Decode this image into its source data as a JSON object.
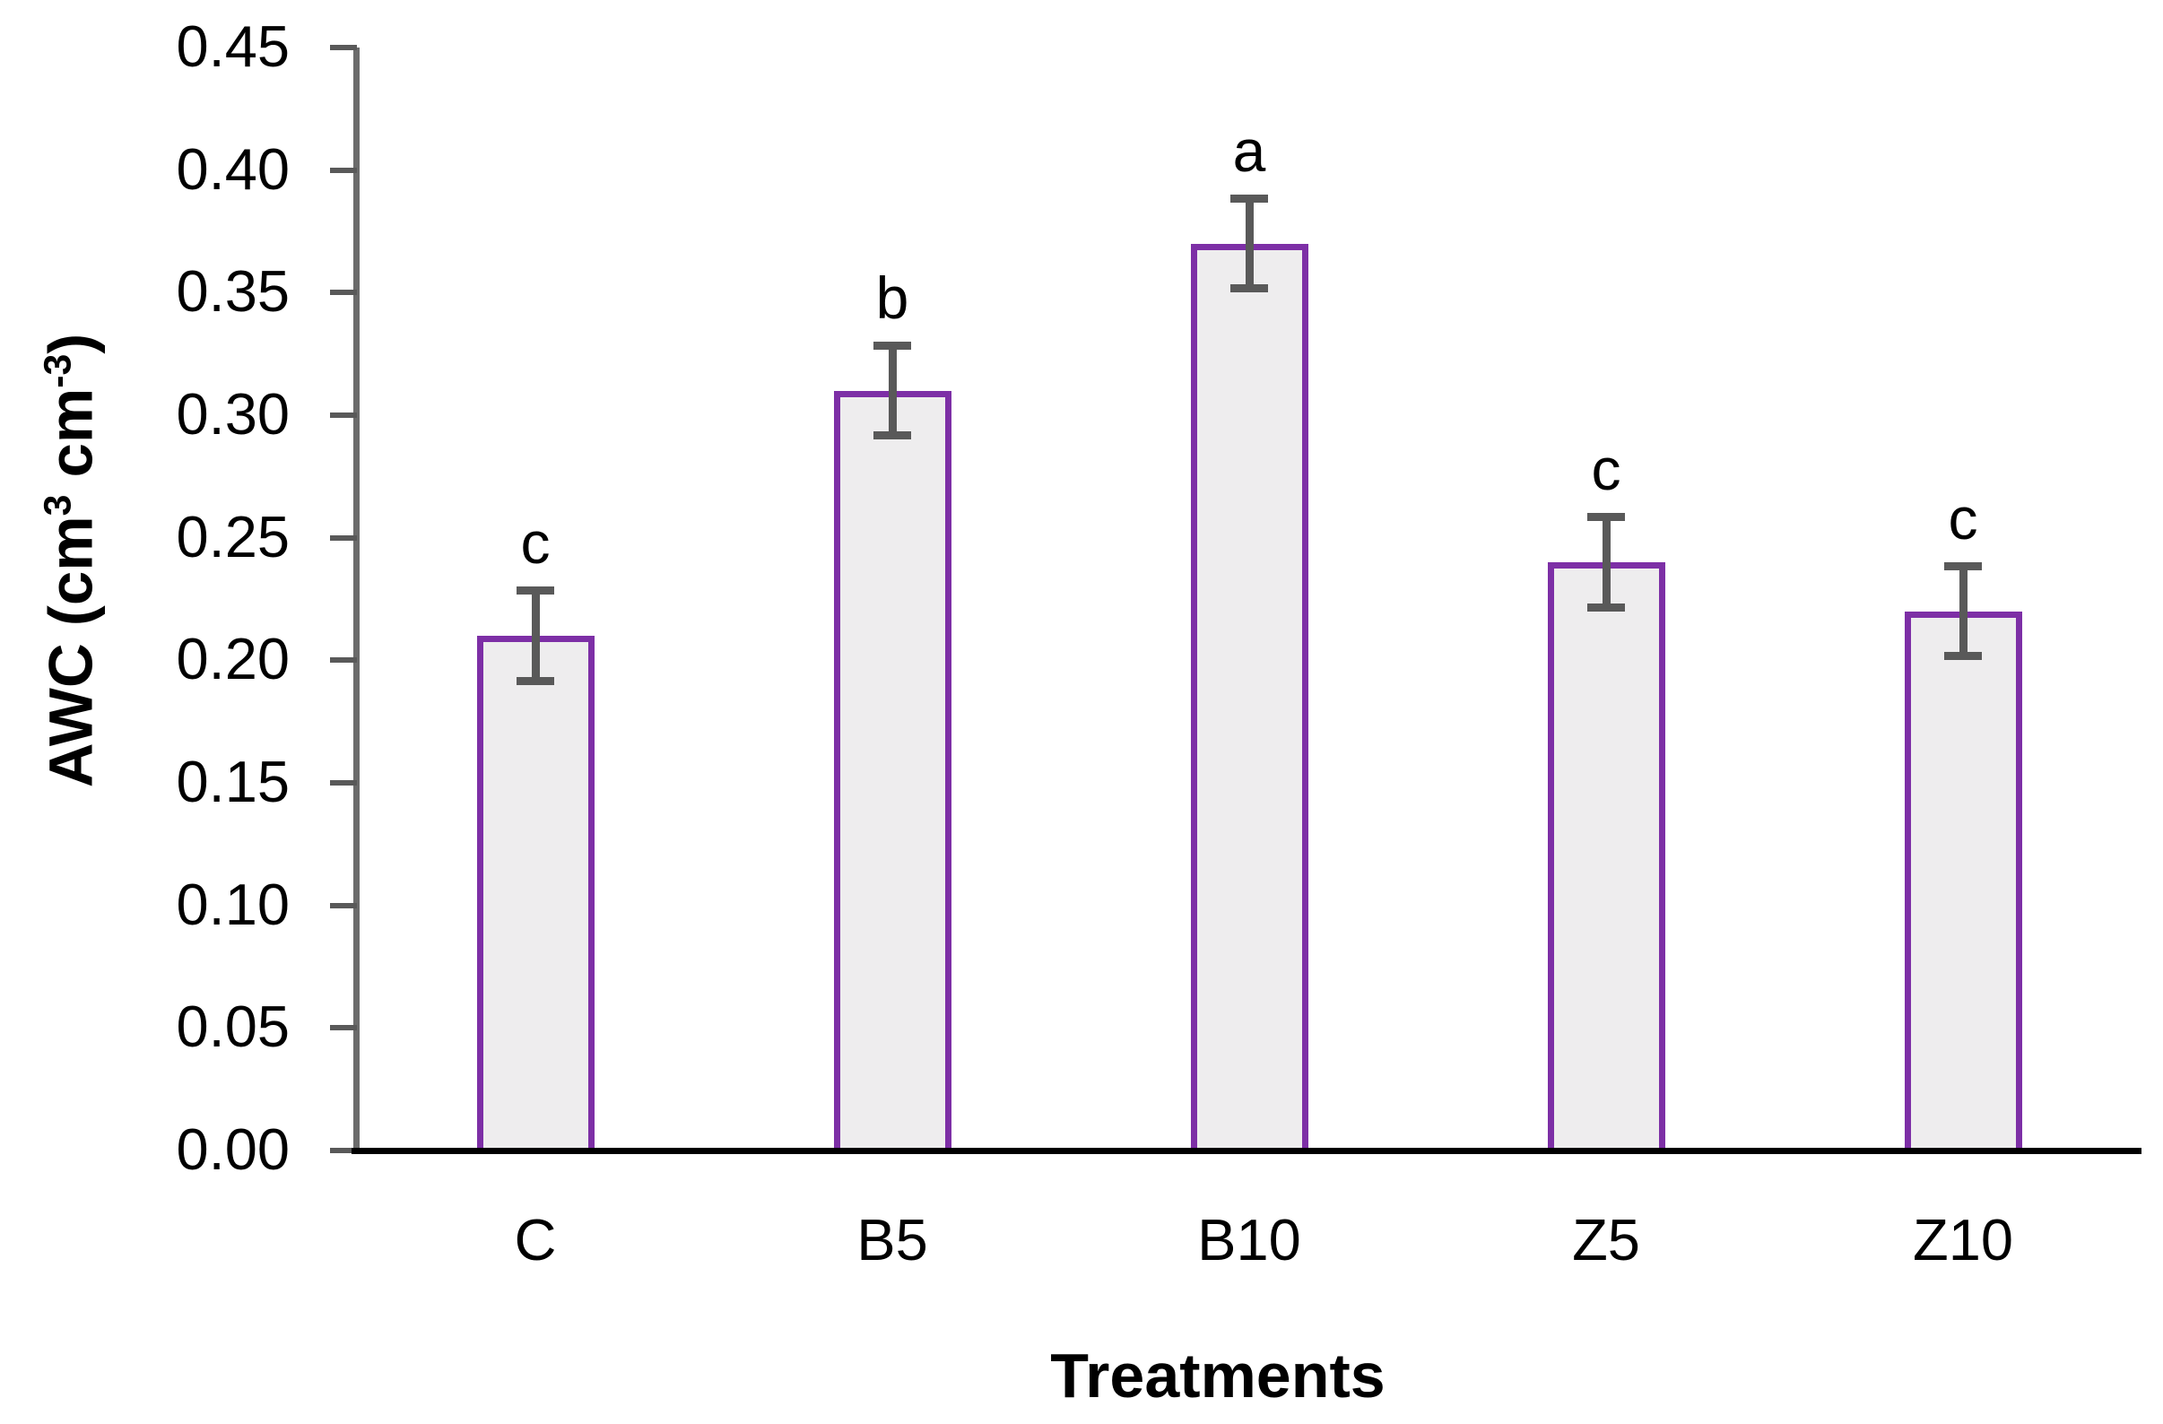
{
  "chart_data": {
    "type": "bar",
    "title": "",
    "xlabel": "Treatments",
    "ylabel": "AWC (cm³ cm⁻³)",
    "ylabel_parts": [
      {
        "text": "AWC (cm",
        "sup": false
      },
      {
        "text": "3",
        "sup": true
      },
      {
        "text": " cm",
        "sup": false
      },
      {
        "text": "-3",
        "sup": true
      },
      {
        "text": ")",
        "sup": false
      }
    ],
    "categories": [
      "C",
      "B5",
      "B10",
      "Z5",
      "Z10"
    ],
    "values": [
      0.21,
      0.31,
      0.37,
      0.24,
      0.22
    ],
    "error_bars": [
      0.02,
      0.02,
      0.02,
      0.02,
      0.02
    ],
    "significance_letters": [
      "c",
      "b",
      "a",
      "c",
      "c"
    ],
    "ylim": [
      0.0,
      0.45
    ],
    "ytick_step": 0.05,
    "ytick_labels": [
      "0.00",
      "0.05",
      "0.10",
      "0.15",
      "0.20",
      "0.25",
      "0.30",
      "0.35",
      "0.40",
      "0.45"
    ],
    "grid": false,
    "legend": false,
    "colors": {
      "bar_fill": "#EEEDEE",
      "bar_border": "#7D2FA6",
      "error_bar": "#595959",
      "y_axis": "#6B6B6B",
      "y_tick": "#595959",
      "x_axis": "#000000",
      "text": "#000000",
      "background": "#FFFFFF"
    }
  }
}
